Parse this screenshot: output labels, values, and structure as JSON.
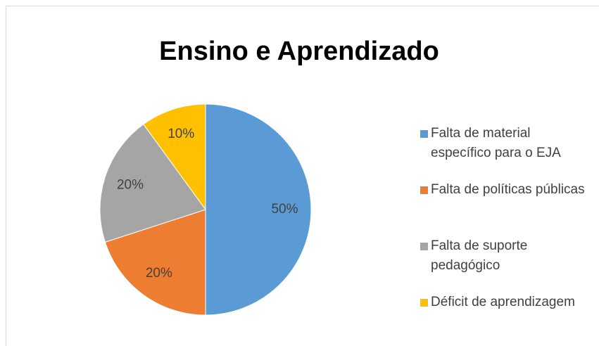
{
  "chart_data": {
    "type": "pie",
    "title": "Ensino e Aprendizado",
    "categories": [
      "Falta de material específico para o EJA",
      "Falta de políticas públicas",
      "Falta de suporte pedagógico",
      "Déficit de aprendizagem"
    ],
    "values": [
      50,
      20,
      20,
      10
    ],
    "value_labels": [
      "50%",
      "20%",
      "20%",
      "10%"
    ],
    "colors": [
      "#5b9bd5",
      "#ed7d31",
      "#a5a5a5",
      "#ffc000"
    ],
    "legend": "right"
  }
}
